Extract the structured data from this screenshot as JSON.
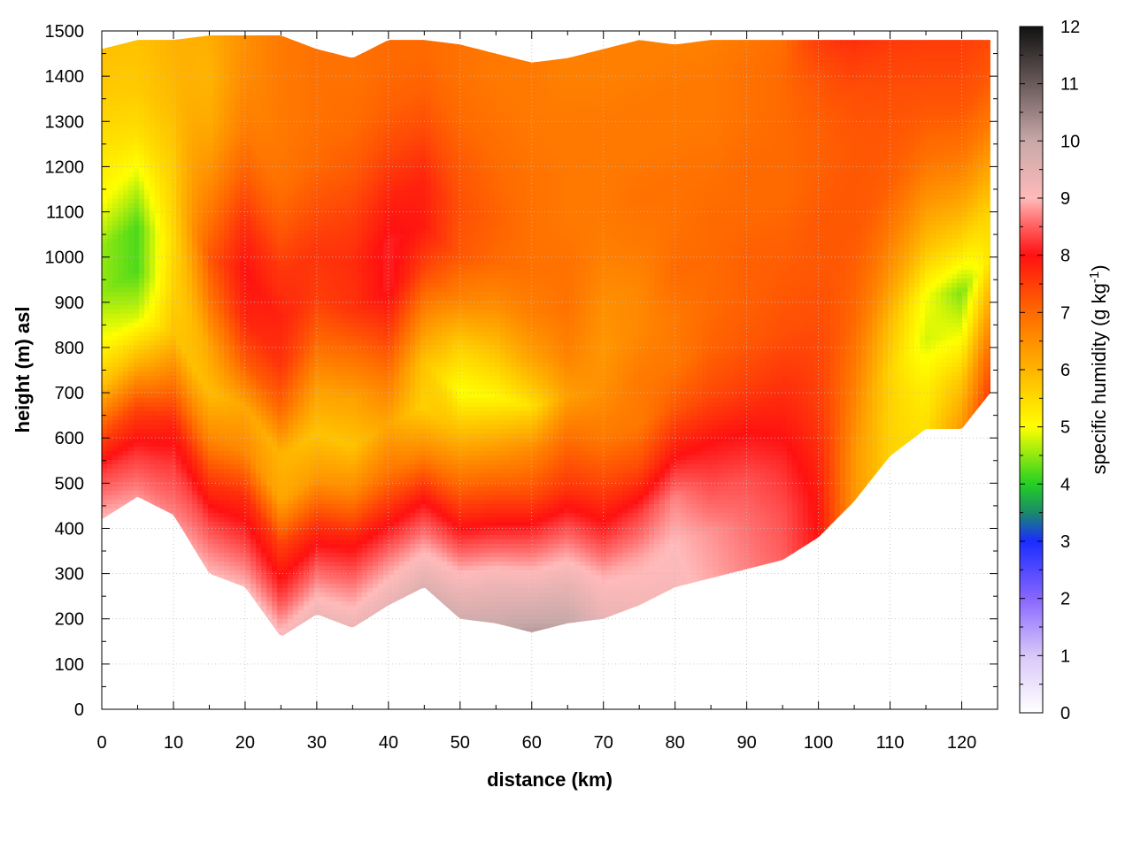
{
  "chart_data": {
    "type": "heatmap",
    "xlabel": "distance (km)",
    "ylabel": "height (m) asl",
    "colorbar": {
      "label_main": "specific humidity (g kg",
      "label_sup": "-1",
      "label_close": ")",
      "range": [
        0,
        12
      ],
      "ticks": [
        "0",
        "1",
        "2",
        "3",
        "4",
        "5",
        "6",
        "7",
        "8",
        "9",
        "10",
        "11",
        "12"
      ],
      "colormap": [
        {
          "value": 0,
          "color": "#ffffff"
        },
        {
          "value": 1,
          "color": "#d8c8f8"
        },
        {
          "value": 2,
          "color": "#8866ff"
        },
        {
          "value": 3,
          "color": "#1a2cff"
        },
        {
          "value": 3.5,
          "color": "#1a8a6a"
        },
        {
          "value": 4,
          "color": "#22d022"
        },
        {
          "value": 5,
          "color": "#ffff00"
        },
        {
          "value": 6,
          "color": "#ffb400"
        },
        {
          "value": 7,
          "color": "#ff6a00"
        },
        {
          "value": 8,
          "color": "#ff1111"
        },
        {
          "value": 8.6,
          "color": "#ff6f6f"
        },
        {
          "value": 9,
          "color": "#ffbaba"
        },
        {
          "value": 10,
          "color": "#c8a8a8"
        },
        {
          "value": 11,
          "color": "#6a5a5a"
        },
        {
          "value": 12,
          "color": "#111111"
        }
      ]
    },
    "xlim": [
      0,
      125
    ],
    "ylim": [
      0,
      1500
    ],
    "xticks": [
      "0",
      "10",
      "20",
      "30",
      "40",
      "50",
      "60",
      "70",
      "80",
      "90",
      "100",
      "110",
      "120"
    ],
    "yticks": [
      "0",
      "100",
      "200",
      "300",
      "400",
      "500",
      "600",
      "700",
      "800",
      "900",
      "1000",
      "1100",
      "1200",
      "1300",
      "1400",
      "1500"
    ],
    "grid": true,
    "data_x_km": [
      0,
      5,
      10,
      15,
      20,
      25,
      30,
      35,
      40,
      45,
      50,
      55,
      60,
      65,
      70,
      75,
      80,
      85,
      90,
      95,
      100,
      105,
      110,
      115,
      120,
      124
    ],
    "data_z_m": [
      0,
      100,
      200,
      300,
      400,
      500,
      600,
      700,
      800,
      900,
      1000,
      1100,
      1200,
      1300,
      1400,
      1500
    ],
    "ground_height_m": [
      420,
      470,
      430,
      300,
      270,
      160,
      210,
      180,
      230,
      270,
      200,
      190,
      170,
      190,
      200,
      230,
      270,
      290,
      310,
      330,
      380,
      460,
      560,
      620,
      620,
      700
    ],
    "data_top_m": [
      1460,
      1480,
      1480,
      1490,
      1490,
      1490,
      1460,
      1440,
      1480,
      1480,
      1470,
      1450,
      1430,
      1440,
      1460,
      1480,
      1470,
      1480,
      1480,
      1480,
      1480,
      1480,
      1480,
      1480,
      1480,
      1480
    ],
    "specific_humidity": [
      [
        9.0,
        8.3,
        7.2,
        5.8,
        5.0,
        4.5,
        4.5,
        5.0,
        5.3,
        5.6,
        5.8,
        5.9,
        6.0
      ],
      [
        8.8,
        8.2,
        7.4,
        6.0,
        4.8,
        4.2,
        4.2,
        4.8,
        5.4,
        5.7,
        5.8,
        5.9,
        6.0
      ],
      [
        8.7,
        8.3,
        7.8,
        6.8,
        5.8,
        5.6,
        5.5,
        5.6,
        5.7,
        5.9,
        6.0,
        6.1,
        6.2
      ],
      [
        9.0,
        8.4,
        7.6,
        6.6,
        5.9,
        6.2,
        6.8,
        7.2,
        6.8,
        6.4,
        6.1,
        6.0,
        6.1
      ],
      [
        9.0,
        8.3,
        7.7,
        6.6,
        6.2,
        7.2,
        7.8,
        8.0,
        7.7,
        7.2,
        6.8,
        6.6,
        6.5
      ],
      [
        9.1,
        8.2,
        7.5,
        6.2,
        6.0,
        7.0,
        7.6,
        7.8,
        7.6,
        7.2,
        6.9,
        6.8,
        6.8
      ],
      [
        9.3,
        8.5,
        7.6,
        6.4,
        5.8,
        6.3,
        7.0,
        7.5,
        7.6,
        7.3,
        7.0,
        6.9,
        6.9
      ],
      [
        9.3,
        8.6,
        7.8,
        6.6,
        5.8,
        6.2,
        6.9,
        7.6,
        7.7,
        7.5,
        7.2,
        7.0,
        6.9
      ],
      [
        9.4,
        8.7,
        7.8,
        6.8,
        6.2,
        6.8,
        7.5,
        8.1,
        8.1,
        7.8,
        7.4,
        7.1,
        7.0
      ],
      [
        9.6,
        8.8,
        7.9,
        6.6,
        5.6,
        5.8,
        6.6,
        7.4,
        7.9,
        7.8,
        7.4,
        7.1,
        7.0
      ],
      [
        9.8,
        9.0,
        8.0,
        7.0,
        6.0,
        5.0,
        5.6,
        6.6,
        7.2,
        7.3,
        7.2,
        7.0,
        6.9
      ],
      [
        9.9,
        9.2,
        8.2,
        7.2,
        6.2,
        5.1,
        5.8,
        6.5,
        7.0,
        7.1,
        7.0,
        6.9,
        6.8
      ],
      [
        10.2,
        9.3,
        8.4,
        7.4,
        6.6,
        5.4,
        6.2,
        6.7,
        6.9,
        6.9,
        6.9,
        6.8,
        6.8
      ],
      [
        10.0,
        9.3,
        8.5,
        7.6,
        7.0,
        6.3,
        6.7,
        6.9,
        6.9,
        6.8,
        6.8,
        6.8,
        6.7
      ],
      [
        9.4,
        8.9,
        8.1,
        7.4,
        6.8,
        6.5,
        6.4,
        6.5,
        6.7,
        6.8,
        6.8,
        6.8,
        6.7
      ],
      [
        9.2,
        8.9,
        8.3,
        7.4,
        6.8,
        6.8,
        6.6,
        6.6,
        6.8,
        6.9,
        6.8,
        6.8,
        6.7
      ],
      [
        9.1,
        9.0,
        8.7,
        7.9,
        7.2,
        6.8,
        6.8,
        7.0,
        6.9,
        6.9,
        6.8,
        6.8,
        6.7
      ],
      [
        8.9,
        8.8,
        8.4,
        8.0,
        7.4,
        7.1,
        7.0,
        7.0,
        7.0,
        6.9,
        6.8,
        6.8,
        6.7
      ],
      [
        8.7,
        8.6,
        8.4,
        8.0,
        7.5,
        7.2,
        7.1,
        7.1,
        7.0,
        7.0,
        6.9,
        6.9,
        6.8
      ],
      [
        8.5,
        8.4,
        8.2,
        7.9,
        7.6,
        7.3,
        7.2,
        7.1,
        7.0,
        7.0,
        7.0,
        7.0,
        6.9
      ],
      [
        8.0,
        7.9,
        7.7,
        7.5,
        7.4,
        7.3,
        7.2,
        7.2,
        7.1,
        7.1,
        7.2,
        7.5,
        7.6
      ],
      [
        6.4,
        6.4,
        6.6,
        6.8,
        7.0,
        7.1,
        7.2,
        7.2,
        7.2,
        7.3,
        7.6,
        8.0,
        8.0
      ],
      [
        5.6,
        5.6,
        5.6,
        5.9,
        6.4,
        6.8,
        7.1,
        7.2,
        7.3,
        7.5,
        7.8,
        8.2,
        8.2
      ],
      [
        5.4,
        5.2,
        4.8,
        5.0,
        5.8,
        6.4,
        6.9,
        7.2,
        7.4,
        7.6,
        7.8,
        8.0,
        8.0
      ],
      [
        6.4,
        5.8,
        5.0,
        4.4,
        5.4,
        6.2,
        6.8,
        7.2,
        7.4,
        7.6,
        7.8,
        7.9,
        7.9
      ],
      [
        7.6,
        7.0,
        6.2,
        5.4,
        5.6,
        6.2,
        6.8,
        7.2,
        7.4,
        7.6,
        7.8,
        7.9,
        7.9
      ]
    ]
  }
}
